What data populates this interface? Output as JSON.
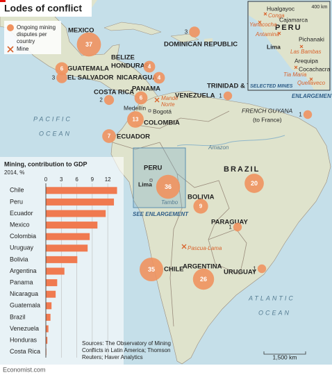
{
  "header": {
    "title": "Lodes of conflict"
  },
  "legend": {
    "disputes": [
      "Ongoing mining",
      "disputes per",
      "country"
    ],
    "mine": "Mine"
  },
  "map": {
    "markers": [
      37,
      6,
      3,
      4,
      4,
      2,
      6,
      3,
      1,
      1,
      13,
      7,
      36,
      9,
      20,
      1,
      35,
      26,
      1
    ],
    "countries": [
      "MEXICO",
      "BELIZE",
      "HONDURAS",
      "GUATEMALA",
      "EL SALVADOR",
      "NICARAGUA",
      "COSTA RICA",
      "PANAMA",
      "DOMINICAN REPUBLIC",
      "TRINIDAD & TOBAGO",
      "VENEZUELA",
      "COLOMBIA",
      "ECUADOR",
      "PERU",
      "BOLIVIA",
      "BRAZIL",
      "PARAGUAY",
      "CHILE",
      "ARGENTINA",
      "URUGUAY",
      "FRENCH GUYANA",
      "(to France)"
    ],
    "cities": [
      "Bogotá",
      "Medellín",
      "Lima"
    ],
    "mines": [
      "Mande",
      "Norte",
      "Pascua-Lama"
    ],
    "rivers": [
      "Amazon",
      "Tambo"
    ],
    "oceans": [
      "PACIFIC",
      "OCEAN",
      "ATLANTIC",
      "OCEAN"
    ],
    "see_enlargement": "SEE ENLARGEMENT",
    "enlargement": "ENLARGEMENT",
    "scale": "1,500 km"
  },
  "inset": {
    "country": "PERU",
    "scale": "400 km",
    "places": [
      "Hualgayoc",
      "Cajamarca",
      "Pichanaki",
      "Lima",
      "Arequipa",
      "Cocachacra"
    ],
    "mines": [
      "Conga",
      "Yanacocha",
      "Antamina",
      "Las Bambas",
      "Tia Maria",
      "Quellaveco"
    ],
    "caption": "SELECTED MINES"
  },
  "chart_data": {
    "type": "barh",
    "title": "Mining, contribution to GDP",
    "subtitle": "2014, %",
    "categories": [
      "Chile",
      "Peru",
      "Ecuador",
      "Mexico",
      "Colombia",
      "Uruguay",
      "Bolivia",
      "Argentina",
      "Panama",
      "Nicaragua",
      "Guatemala",
      "Brazil",
      "Venezuela",
      "Honduras",
      "Costa Rica"
    ],
    "values": [
      13.8,
      13.2,
      11.6,
      10,
      8.5,
      8.1,
      6.1,
      3.6,
      2.2,
      1.9,
      1.1,
      0.9,
      0.5,
      0.3,
      0.1
    ],
    "color": "#f07a50",
    "xlim": [
      0,
      14
    ],
    "xticks": [
      0,
      3,
      6,
      9,
      12
    ],
    "grid": true
  },
  "source": [
    "Sources: The Observatory of Mining",
    "Conflicts in Latin America; Thomson",
    "Reuters; Haver Analytics"
  ],
  "footer": "Economist.com"
}
